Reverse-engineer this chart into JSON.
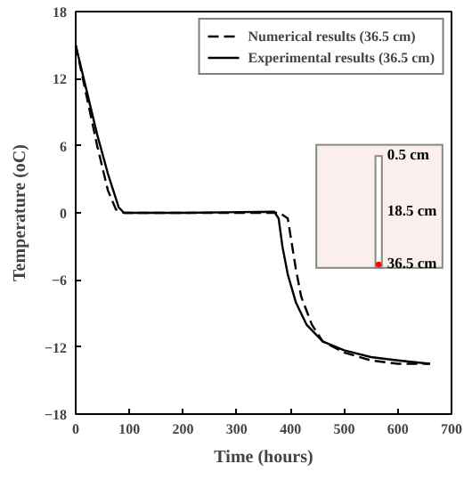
{
  "chart_data": {
    "type": "line",
    "xlabel": "Time (hours)",
    "ylabel": "Temperature (oC)",
    "xlim": [
      0,
      700
    ],
    "ylim": [
      -18,
      18
    ],
    "xticks": [
      0,
      100,
      200,
      300,
      400,
      500,
      600,
      700
    ],
    "yticks": [
      -18,
      -12,
      -6,
      0,
      6,
      12,
      18
    ],
    "grid": false,
    "legend": "top right",
    "marker": "none",
    "annotations": [
      "0.5 cm",
      "18.5 cm",
      "36.5 cm"
    ],
    "series": [
      {
        "name": "Numerical results (36.5 cm)",
        "color": "#000000",
        "line_style": "dashed",
        "x": [
          0,
          20,
          40,
          60,
          75,
          90,
          200,
          380,
          395,
          400,
          410,
          420,
          440,
          460,
          500,
          550,
          600,
          660
        ],
        "values": [
          15,
          10.5,
          6,
          2,
          0.3,
          0,
          0,
          0,
          -0.5,
          -2,
          -5,
          -7.5,
          -10,
          -11.5,
          -12.5,
          -13.2,
          -13.5,
          -13.5
        ]
      },
      {
        "name": "Experimental results (36.5 cm)",
        "color": "#000000",
        "line_style": "solid",
        "x": [
          0,
          20,
          40,
          60,
          80,
          90,
          200,
          370,
          378,
          385,
          395,
          410,
          430,
          460,
          500,
          550,
          600,
          660
        ],
        "values": [
          15,
          11,
          7,
          3.5,
          0.5,
          0,
          0,
          0.1,
          -0.5,
          -3,
          -5.5,
          -8,
          -10,
          -11.5,
          -12.3,
          -12.9,
          -13.2,
          -13.5
        ]
      }
    ]
  }
}
